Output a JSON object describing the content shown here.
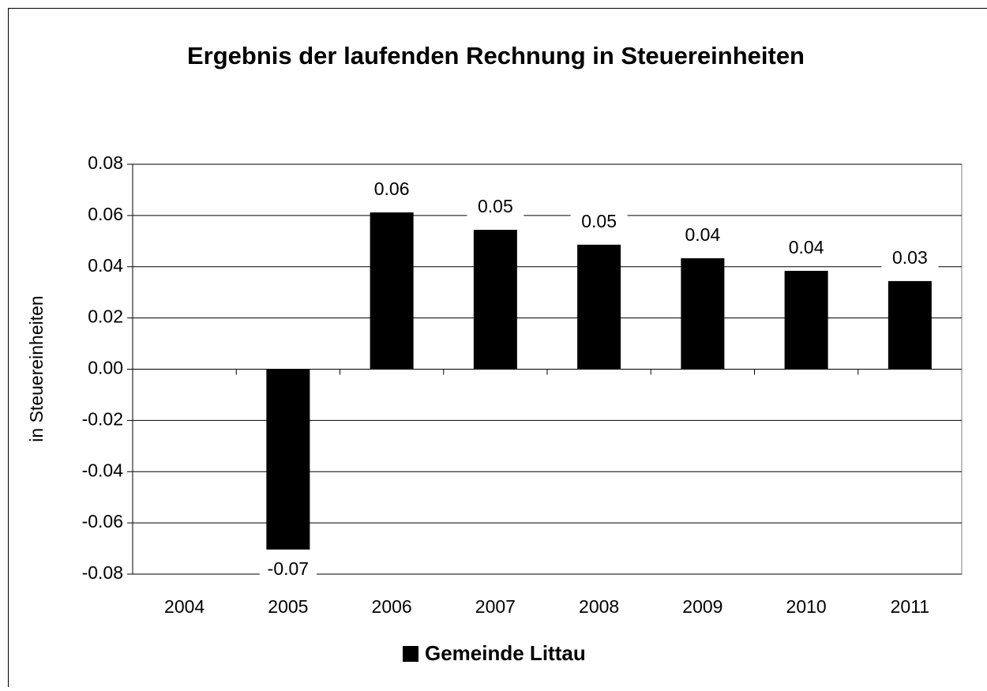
{
  "chart_data": {
    "type": "bar",
    "title": "Ergebnis der laufenden Rechnung in Steuereinheiten",
    "y_label": "in Steuereinheiten",
    "categories": [
      "2004",
      "2005",
      "2006",
      "2007",
      "2008",
      "2009",
      "2010",
      "2011"
    ],
    "series": [
      {
        "name": "Gemeinde Littau",
        "color": "#000000",
        "values": [
          null,
          -0.0704,
          0.0612,
          0.0544,
          0.0486,
          0.0433,
          0.0384,
          0.0344
        ],
        "value_labels": [
          null,
          "-0.07",
          "0.06",
          "0.05",
          "0.05",
          "0.04",
          "0.04",
          "0.03"
        ]
      }
    ],
    "ylim": [
      -0.08,
      0.08
    ],
    "yticks": [
      -0.08,
      -0.06,
      -0.04,
      -0.02,
      {
        "value": 0,
        "label": "0.00"
      },
      0.02,
      0.04,
      0.06,
      0.08
    ],
    "grid": true,
    "legend": "bottom"
  }
}
